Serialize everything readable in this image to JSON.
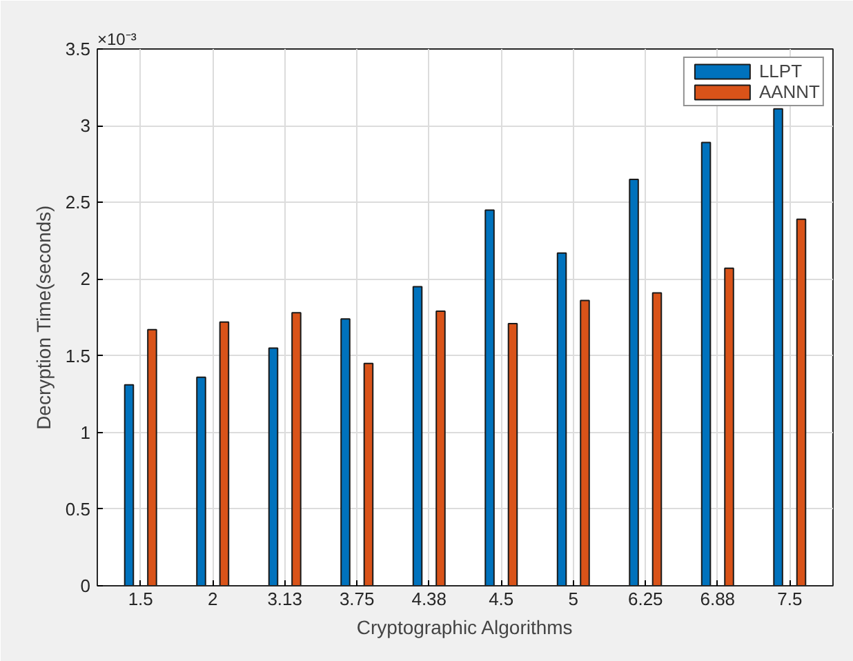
{
  "chart_data": {
    "type": "bar",
    "xlabel": "Cryptographic Algorithms",
    "ylabel": "Decryption Time(seconds)",
    "annotations": [
      "×10⁻³"
    ],
    "categories": [
      "1.5",
      "2",
      "3.13",
      "3.75",
      "4.38",
      "4.5",
      "5",
      "6.25",
      "6.88",
      "7.5"
    ],
    "series": [
      {
        "name": "LLPT",
        "color": "#0072bd",
        "values": [
          1.31,
          1.36,
          1.55,
          1.74,
          1.95,
          2.45,
          2.17,
          2.65,
          2.89,
          3.11
        ]
      },
      {
        "name": "AANNT",
        "color": "#d95319",
        "values": [
          1.67,
          1.72,
          1.78,
          1.45,
          1.79,
          1.71,
          1.86,
          1.91,
          2.07,
          2.39
        ]
      }
    ],
    "ylim": [
      0,
      3.5
    ],
    "yticks": [
      0,
      0.5,
      1,
      1.5,
      2,
      2.5,
      3,
      3.5
    ],
    "grid": true,
    "legend": "top right"
  }
}
